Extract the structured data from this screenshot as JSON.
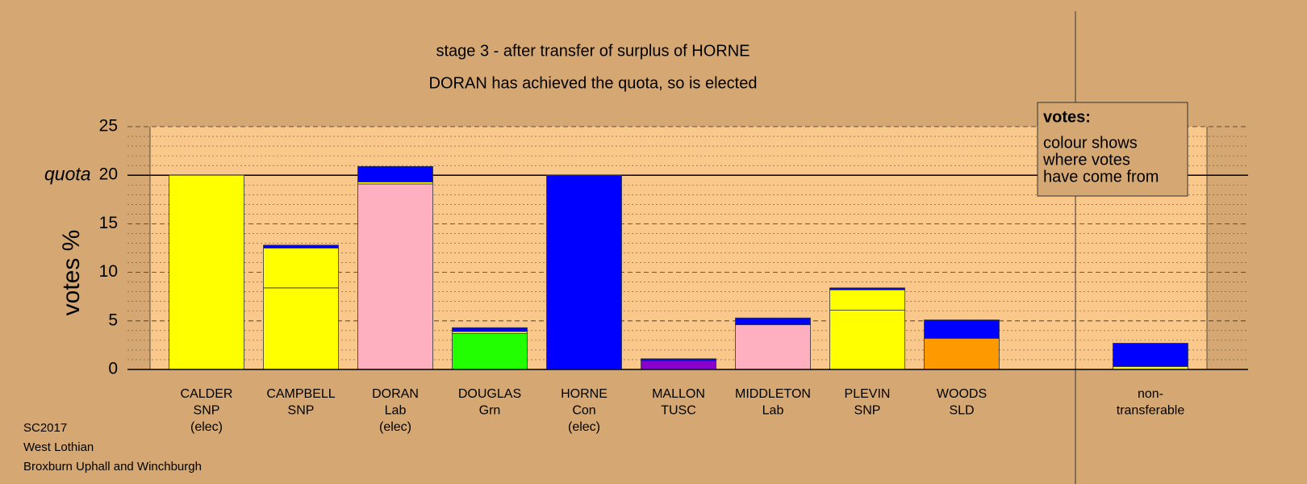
{
  "chart_data": {
    "type": "stacked-bar",
    "title": "stage 3 - after transfer of surplus of HORNE",
    "subtitle": "DORAN has achieved the quota, so is elected",
    "ylabel": "votes %",
    "ylim": [
      0,
      25
    ],
    "yticks": [
      0,
      5,
      10,
      15,
      20,
      25
    ],
    "yminor_step": 1,
    "quota": {
      "value": 20,
      "label": "quota"
    },
    "categories": [
      [
        "CALDER",
        "SNP",
        "(elec)"
      ],
      [
        "CAMPBELL",
        "SNP"
      ],
      [
        "DORAN",
        "Lab",
        "(elec)"
      ],
      [
        "DOUGLAS",
        "Grn"
      ],
      [
        "HORNE",
        "Con",
        "(elec)"
      ],
      [
        "MALLON",
        "TUSC"
      ],
      [
        "MIDDLETON",
        "Lab"
      ],
      [
        "PLEVIN",
        "SNP"
      ],
      [
        "WOODS",
        "SLD"
      ],
      [
        "non-",
        "transferable"
      ]
    ],
    "segments": [
      [
        {
          "value": 20,
          "color": "#ffff00"
        }
      ],
      [
        {
          "value": 8.4,
          "color": "#ffff00"
        },
        {
          "value": 4.1,
          "color": "#ffff00"
        },
        {
          "value": 0.3,
          "color": "#0000ff"
        }
      ],
      [
        {
          "value": 19.1,
          "color": "#ffb0c0"
        },
        {
          "value": 0.2,
          "color": "#ffff00"
        },
        {
          "value": 1.6,
          "color": "#0000ff"
        }
      ],
      [
        {
          "value": 3.7,
          "color": "#22ff00"
        },
        {
          "value": 0.2,
          "color": "#ffff00"
        },
        {
          "value": 0.4,
          "color": "#0000ff"
        }
      ],
      [
        {
          "value": 20,
          "color": "#0000ff"
        }
      ],
      [
        {
          "value": 0.9,
          "color": "#8800cc"
        },
        {
          "value": 0.2,
          "color": "#0000ff"
        }
      ],
      [
        {
          "value": 4.6,
          "color": "#ffb0c0"
        },
        {
          "value": 0.7,
          "color": "#0000ff"
        }
      ],
      [
        {
          "value": 6.1,
          "color": "#ffff00"
        },
        {
          "value": 2.1,
          "color": "#ffff00"
        },
        {
          "value": 0.2,
          "color": "#0000ff"
        }
      ],
      [
        {
          "value": 3.2,
          "color": "#ff9900"
        },
        {
          "value": 1.9,
          "color": "#0000ff"
        }
      ],
      [
        {
          "value": 0.3,
          "color": "#ffff00"
        },
        {
          "value": 2.4,
          "color": "#0000ff"
        }
      ]
    ],
    "legend": {
      "title": "votes:",
      "lines": [
        "colour shows",
        "where votes",
        "have come from"
      ]
    }
  },
  "footer": [
    "SC2017",
    "West Lothian",
    "Broxburn Uphall and Winchburgh"
  ]
}
